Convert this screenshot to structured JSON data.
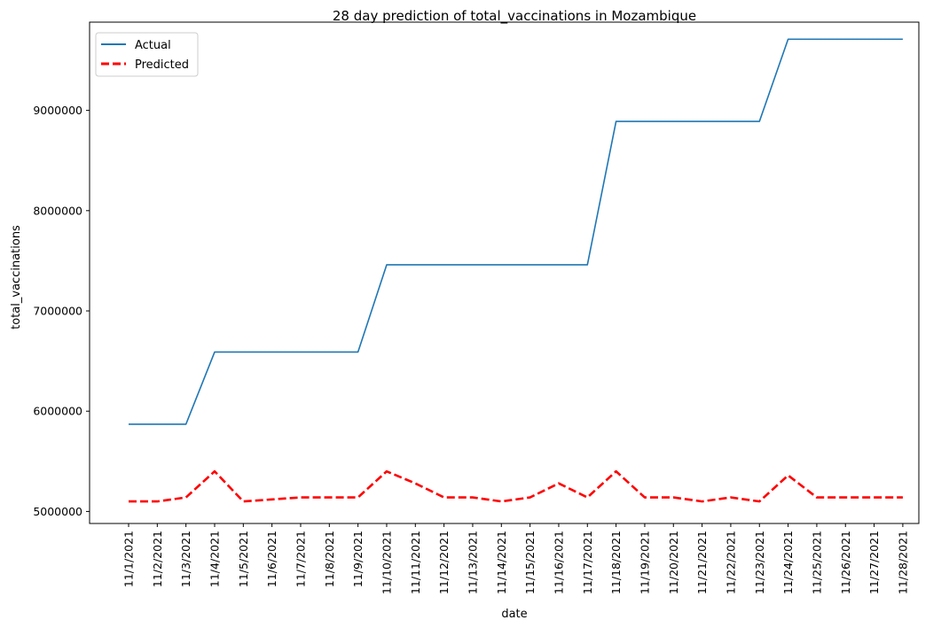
{
  "chart_data": {
    "type": "line",
    "title": "28 day prediction of total_vaccinations in Mozambique",
    "xlabel": "date",
    "ylabel": "total_vaccinations",
    "categories": [
      "11/1/2021",
      "11/2/2021",
      "11/3/2021",
      "11/4/2021",
      "11/5/2021",
      "11/6/2021",
      "11/7/2021",
      "11/8/2021",
      "11/9/2021",
      "11/10/2021",
      "11/11/2021",
      "11/12/2021",
      "11/13/2021",
      "11/14/2021",
      "11/15/2021",
      "11/16/2021",
      "11/17/2021",
      "11/18/2021",
      "11/19/2021",
      "11/20/2021",
      "11/21/2021",
      "11/22/2021",
      "11/23/2021",
      "11/24/2021",
      "11/25/2021",
      "11/26/2021",
      "11/27/2021",
      "11/28/2021"
    ],
    "yticks": [
      5000000,
      6000000,
      7000000,
      8000000,
      9000000
    ],
    "ytick_labels": [
      "5000000",
      "6000000",
      "7000000",
      "8000000",
      "9000000"
    ],
    "ylim": [
      4880000,
      9880000
    ],
    "legend_position": "upper-left",
    "grid": false,
    "series": [
      {
        "name": "Actual",
        "color": "#1f77b4",
        "style": "solid",
        "values": [
          5870000,
          5870000,
          5870000,
          6590000,
          6590000,
          6590000,
          6590000,
          6590000,
          6590000,
          7460000,
          7460000,
          7460000,
          7460000,
          7460000,
          7460000,
          7460000,
          7460000,
          8890000,
          8890000,
          8890000,
          8890000,
          8890000,
          8890000,
          9710000,
          9710000,
          9710000,
          9710000,
          9710000
        ]
      },
      {
        "name": "Predicted",
        "color": "#ff0000",
        "style": "dashed",
        "values": [
          5100000,
          5100000,
          5140000,
          5400000,
          5100000,
          5120000,
          5140000,
          5140000,
          5140000,
          5400000,
          5280000,
          5140000,
          5140000,
          5100000,
          5140000,
          5280000,
          5140000,
          5400000,
          5140000,
          5140000,
          5100000,
          5140000,
          5100000,
          5360000,
          5140000,
          5140000,
          5140000,
          5140000
        ]
      }
    ]
  }
}
